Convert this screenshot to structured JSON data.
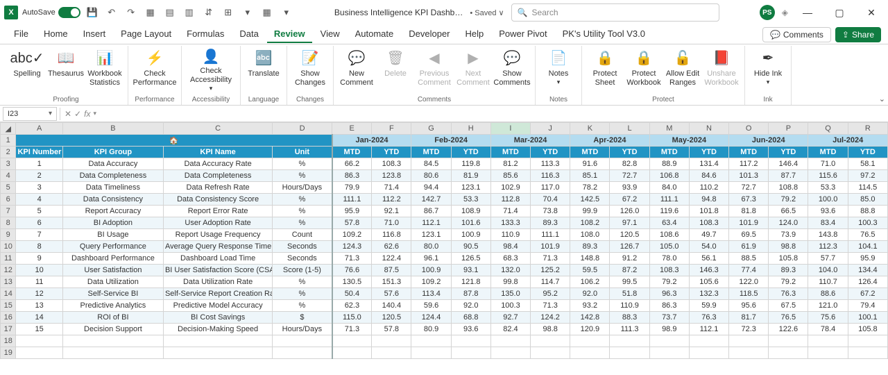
{
  "app": {
    "autosave_label": "AutoSave",
    "title": "Business Intelligence KPI Dashb…",
    "saved_state": "• Saved ∨",
    "search_placeholder": "Search",
    "user_initials": "PS"
  },
  "tabs": {
    "file": "File",
    "home": "Home",
    "insert": "Insert",
    "page_layout": "Page Layout",
    "formulas": "Formulas",
    "data": "Data",
    "review": "Review",
    "view": "View",
    "automate": "Automate",
    "developer": "Developer",
    "help": "Help",
    "power_pivot": "Power Pivot",
    "utility": "PK's Utility Tool V3.0",
    "comments_btn": "Comments",
    "share_btn": "Share"
  },
  "ribbon": {
    "spelling": "Spelling",
    "thesaurus": "Thesaurus",
    "workbook_stats": "Workbook Statistics",
    "check_perf": "Check Performance",
    "check_access": "Check Accessibility",
    "translate": "Translate",
    "show_changes": "Show Changes",
    "new_comment": "New Comment",
    "delete": "Delete",
    "prev_comment": "Previous Comment",
    "next_comment": "Next Comment",
    "show_comments": "Show Comments",
    "notes": "Notes",
    "protect_sheet": "Protect Sheet",
    "protect_wb": "Protect Workbook",
    "allow_edit": "Allow Edit Ranges",
    "unshare_wb": "Unshare Workbook",
    "hide_ink": "Hide Ink",
    "g_proofing": "Proofing",
    "g_performance": "Performance",
    "g_accessibility": "Accessibility",
    "g_language": "Language",
    "g_changes": "Changes",
    "g_comments": "Comments",
    "g_notes": "Notes",
    "g_protect": "Protect",
    "g_ink": "Ink"
  },
  "fbar": {
    "cell_ref": "I23"
  },
  "columns": [
    "A",
    "B",
    "C",
    "D",
    "E",
    "F",
    "G",
    "H",
    "I",
    "J",
    "K",
    "L",
    "M",
    "N",
    "O",
    "P",
    "Q",
    "R"
  ],
  "months": [
    "Jan-2024",
    "Feb-2024",
    "Mar-2024",
    "Apr-2024",
    "May-2024",
    "Jun-2024",
    "Jul-2024"
  ],
  "sub_headers": [
    "MTD",
    "YTD"
  ],
  "kpi_headers": {
    "num": "KPI Number",
    "group": "KPI Group",
    "name": "KPI Name",
    "unit": "Unit"
  },
  "rows": [
    {
      "n": "1",
      "grp": "Data Accuracy",
      "name": "Data Accuracy Rate",
      "unit": "%",
      "v": [
        "66.2",
        "108.3",
        "84.5",
        "119.8",
        "81.2",
        "113.3",
        "91.6",
        "82.8",
        "88.9",
        "131.4",
        "117.2",
        "146.4",
        "71.0",
        "58.1"
      ]
    },
    {
      "n": "2",
      "grp": "Data Completeness",
      "name": "Data Completeness",
      "unit": "%",
      "v": [
        "86.3",
        "123.8",
        "80.6",
        "81.9",
        "85.6",
        "116.3",
        "85.1",
        "72.7",
        "106.8",
        "84.6",
        "101.3",
        "87.7",
        "115.6",
        "97.2"
      ]
    },
    {
      "n": "3",
      "grp": "Data Timeliness",
      "name": "Data Refresh Rate",
      "unit": "Hours/Days",
      "v": [
        "79.9",
        "71.4",
        "94.4",
        "123.1",
        "102.9",
        "117.0",
        "78.2",
        "93.9",
        "84.0",
        "110.2",
        "72.7",
        "108.8",
        "53.3",
        "114.5"
      ]
    },
    {
      "n": "4",
      "grp": "Data Consistency",
      "name": "Data Consistency Score",
      "unit": "%",
      "v": [
        "111.1",
        "112.2",
        "142.7",
        "53.3",
        "112.8",
        "70.4",
        "142.5",
        "67.2",
        "111.1",
        "94.8",
        "67.3",
        "79.2",
        "100.0",
        "85.0"
      ]
    },
    {
      "n": "5",
      "grp": "Report Accuracy",
      "name": "Report Error Rate",
      "unit": "%",
      "v": [
        "95.9",
        "92.1",
        "86.7",
        "108.9",
        "71.4",
        "73.8",
        "99.9",
        "126.0",
        "119.6",
        "101.8",
        "81.8",
        "66.5",
        "93.6",
        "88.8"
      ]
    },
    {
      "n": "6",
      "grp": "BI Adoption",
      "name": "User Adoption Rate",
      "unit": "%",
      "v": [
        "57.8",
        "71.0",
        "112.1",
        "101.6",
        "133.3",
        "89.3",
        "108.2",
        "97.1",
        "63.4",
        "108.3",
        "101.9",
        "124.0",
        "83.4",
        "100.3"
      ]
    },
    {
      "n": "7",
      "grp": "BI Usage",
      "name": "Report Usage Frequency",
      "unit": "Count",
      "v": [
        "109.2",
        "116.8",
        "123.1",
        "100.9",
        "110.9",
        "111.1",
        "108.0",
        "120.5",
        "108.6",
        "49.7",
        "69.5",
        "73.9",
        "143.8",
        "76.5"
      ]
    },
    {
      "n": "8",
      "grp": "Query Performance",
      "name": "Average Query Response Time",
      "unit": "Seconds",
      "v": [
        "124.3",
        "62.6",
        "80.0",
        "90.5",
        "98.4",
        "101.9",
        "89.3",
        "126.7",
        "105.0",
        "54.0",
        "61.9",
        "98.8",
        "112.3",
        "104.1"
      ]
    },
    {
      "n": "9",
      "grp": "Dashboard Performance",
      "name": "Dashboard Load Time",
      "unit": "Seconds",
      "v": [
        "71.3",
        "122.4",
        "96.1",
        "126.5",
        "68.3",
        "71.3",
        "148.8",
        "91.2",
        "78.0",
        "56.1",
        "88.5",
        "105.8",
        "57.7",
        "95.9"
      ]
    },
    {
      "n": "10",
      "grp": "User Satisfaction",
      "name": "BI User Satisfaction Score (CSAT)",
      "unit": "Score (1-5)",
      "v": [
        "76.6",
        "87.5",
        "100.9",
        "93.1",
        "132.0",
        "125.2",
        "59.5",
        "87.2",
        "108.3",
        "146.3",
        "77.4",
        "89.3",
        "104.0",
        "134.4"
      ]
    },
    {
      "n": "11",
      "grp": "Data Utilization",
      "name": "Data Utilization Rate",
      "unit": "%",
      "v": [
        "130.5",
        "151.3",
        "109.2",
        "121.8",
        "99.8",
        "114.7",
        "106.2",
        "99.5",
        "79.2",
        "105.6",
        "122.0",
        "79.2",
        "110.7",
        "126.4"
      ]
    },
    {
      "n": "12",
      "grp": "Self-Service BI",
      "name": "Self-Service Report Creation Rate",
      "unit": "%",
      "v": [
        "50.4",
        "57.6",
        "113.4",
        "87.8",
        "135.0",
        "95.2",
        "92.0",
        "51.8",
        "96.3",
        "132.3",
        "118.5",
        "76.3",
        "88.6",
        "67.2"
      ]
    },
    {
      "n": "13",
      "grp": "Predictive Analytics",
      "name": "Predictive Model Accuracy",
      "unit": "%",
      "v": [
        "62.3",
        "140.4",
        "59.6",
        "92.0",
        "100.3",
        "71.3",
        "93.2",
        "110.9",
        "86.3",
        "59.9",
        "95.6",
        "67.5",
        "121.0",
        "79.4"
      ]
    },
    {
      "n": "14",
      "grp": "ROI of BI",
      "name": "BI Cost Savings",
      "unit": "$",
      "v": [
        "115.0",
        "120.5",
        "124.4",
        "68.8",
        "92.7",
        "124.2",
        "142.8",
        "88.3",
        "73.7",
        "76.3",
        "81.7",
        "76.5",
        "75.6",
        "100.1"
      ]
    },
    {
      "n": "15",
      "grp": "Decision Support",
      "name": "Decision-Making Speed",
      "unit": "Hours/Days",
      "v": [
        "71.3",
        "57.8",
        "80.9",
        "93.6",
        "82.4",
        "98.8",
        "120.9",
        "111.3",
        "98.9",
        "112.1",
        "72.3",
        "122.6",
        "78.4",
        "105.8"
      ]
    }
  ]
}
